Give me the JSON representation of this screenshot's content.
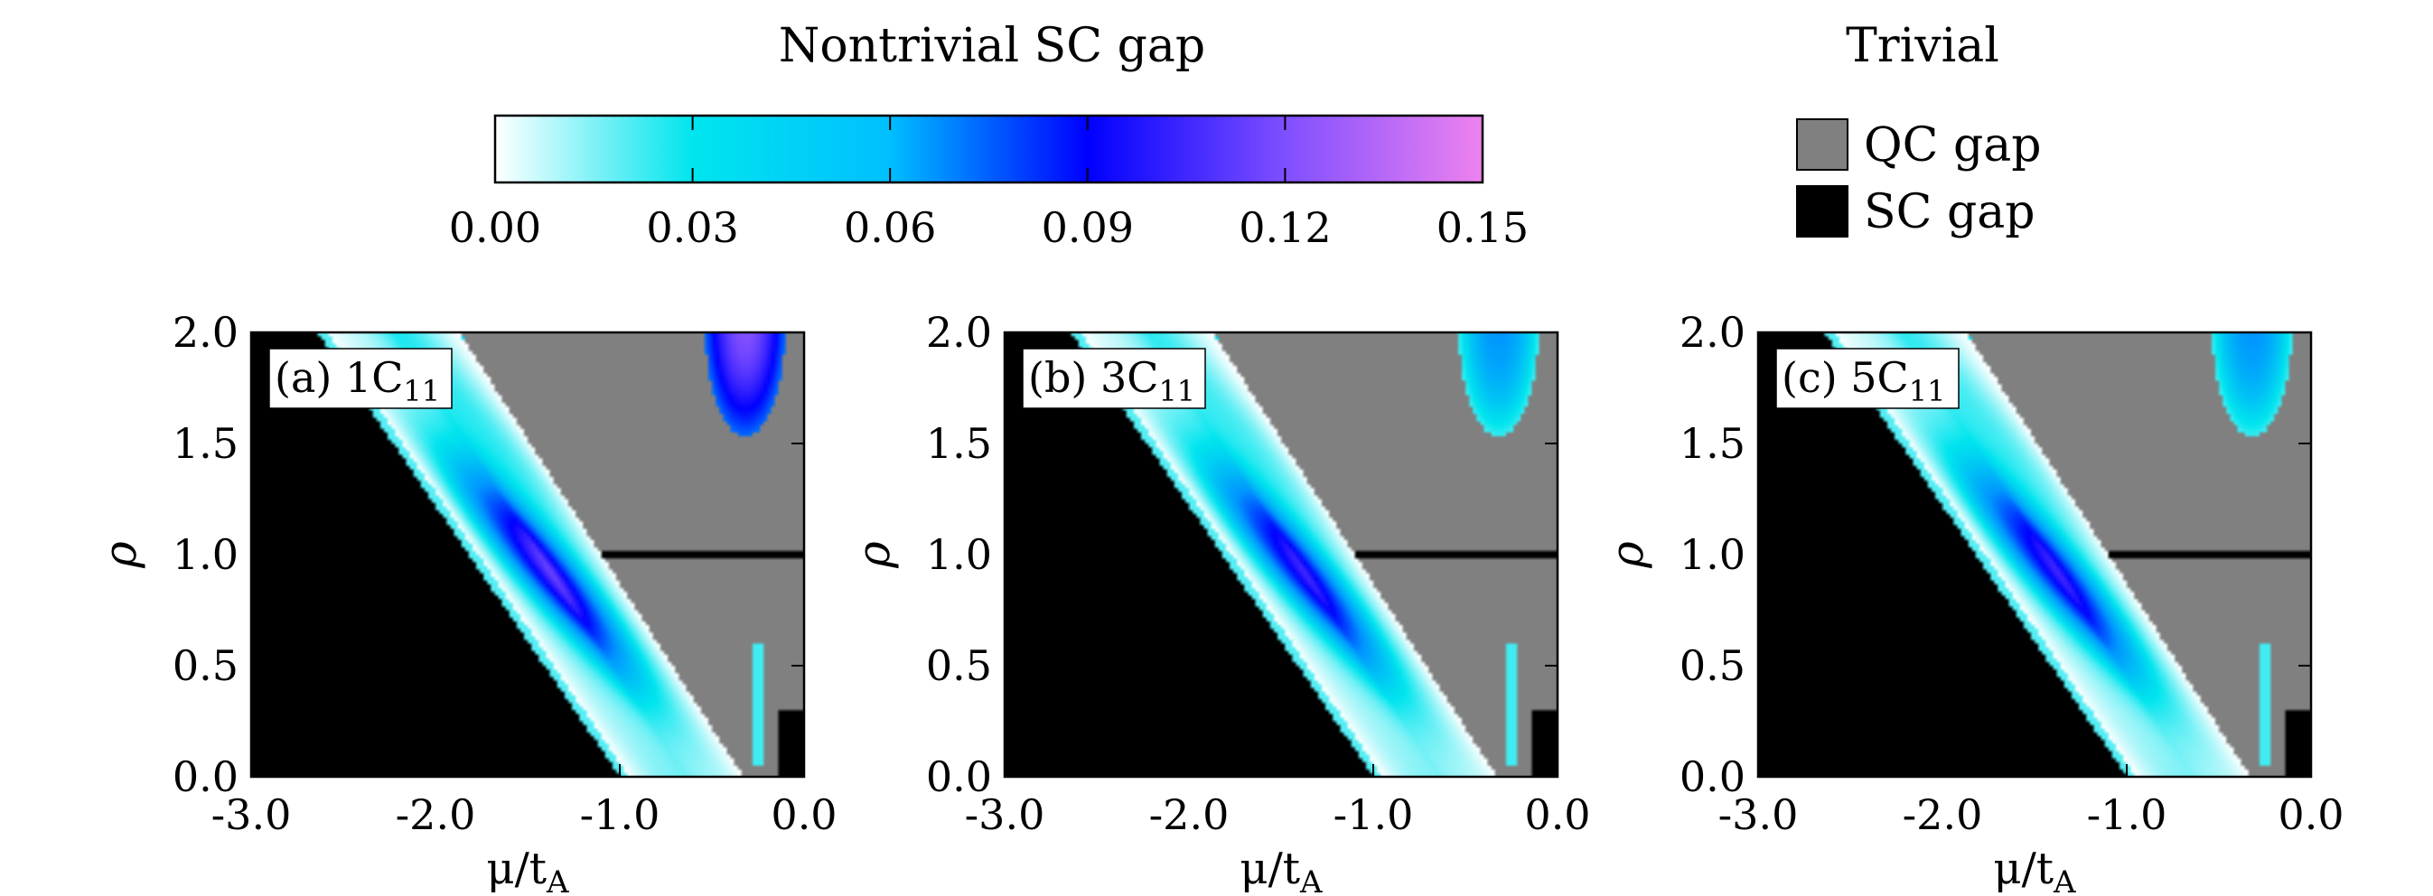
{
  "legend": {
    "colorbar_title": "Nontrivial SC gap",
    "colorbar_ticks": [
      "0.00",
      "0.03",
      "0.06",
      "0.09",
      "0.12",
      "0.15"
    ],
    "colorbar_range": [
      0.0,
      0.15
    ],
    "colorbar_colors": [
      "#ffffff",
      "#00e5ee",
      "#0000ff",
      "#ee82ee"
    ],
    "trivial_title": "Trivial",
    "trivial_items": [
      {
        "label": "QC gap",
        "color": "#808080"
      },
      {
        "label": "SC gap",
        "color": "#000000"
      }
    ]
  },
  "chart_data": [
    {
      "type": "heatmap",
      "panel_label": "(a) 1C",
      "panel_sub": "11",
      "xlabel": "μ/t",
      "xlabel_sub": "A",
      "ylabel": "ρ",
      "xlim": [
        -3.0,
        0.0
      ],
      "ylim": [
        0.0,
        2.0
      ],
      "xticks": [
        "-3.0",
        "-2.0",
        "-1.0",
        "0.0"
      ],
      "yticks": [
        "0.0",
        "0.5",
        "1.0",
        "1.5",
        "2.0"
      ],
      "max_gap": 0.12
    },
    {
      "type": "heatmap",
      "panel_label": "(b) 3C",
      "panel_sub": "11",
      "xlabel": "μ/t",
      "xlabel_sub": "A",
      "ylabel": "ρ",
      "xlim": [
        -3.0,
        0.0
      ],
      "ylim": [
        0.0,
        2.0
      ],
      "xticks": [
        "-3.0",
        "-2.0",
        "-1.0",
        "0.0"
      ],
      "yticks": [
        "0.0",
        "0.5",
        "1.0",
        "1.5",
        "2.0"
      ],
      "max_gap": 0.11
    },
    {
      "type": "heatmap",
      "panel_label": "(c) 5C",
      "panel_sub": "11",
      "xlabel": "μ/t",
      "xlabel_sub": "A",
      "ylabel": "ρ",
      "xlim": [
        -3.0,
        0.0
      ],
      "ylim": [
        0.0,
        2.0
      ],
      "xticks": [
        "-3.0",
        "-2.0",
        "-1.0",
        "0.0"
      ],
      "yticks": [
        "0.0",
        "0.5",
        "1.0",
        "1.5",
        "2.0"
      ],
      "max_gap": 0.11
    }
  ]
}
